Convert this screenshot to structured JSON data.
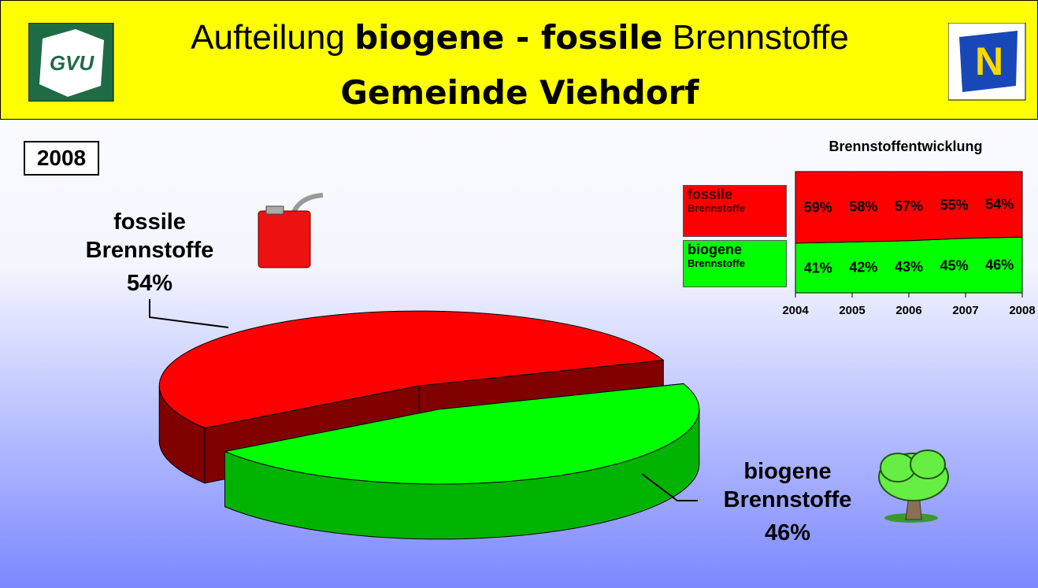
{
  "header": {
    "title_parts": [
      "Aufteilung",
      "biogene - fossile",
      "Brennstoffe"
    ],
    "subtitle": "Gemeinde Viehdorf",
    "logo_left": "GVU",
    "logo_right": "N"
  },
  "year_label": "2008",
  "chart_data": [
    {
      "type": "pie",
      "categories": [
        "fossile Brennstoffe",
        "biogene Brennstoffe"
      ],
      "values": [
        54,
        46
      ],
      "value_labels": [
        "54%",
        "46%"
      ],
      "colors": [
        "#ff0000",
        "#00ff00"
      ]
    },
    {
      "type": "area",
      "title": "Brennstoffentwicklung",
      "x": [
        2004,
        2005,
        2006,
        2007,
        2008
      ],
      "stacked": true,
      "series": [
        {
          "name": "fossile Brennstoffe",
          "color": "#ff0000",
          "values": [
            59,
            58,
            57,
            55,
            54
          ],
          "value_labels": [
            "59%",
            "58%",
            "57%",
            "55%",
            "54%"
          ]
        },
        {
          "name": "biogene Brennstoffe",
          "color": "#00ff00",
          "values": [
            41,
            42,
            43,
            45,
            46
          ],
          "value_labels": [
            "41%",
            "42%",
            "43%",
            "45%",
            "46%"
          ]
        }
      ],
      "xlim": [
        2004,
        2008
      ],
      "xticks": [
        2004,
        2005,
        2006,
        2007,
        2008
      ],
      "ylim": [
        0,
        100
      ]
    }
  ]
}
